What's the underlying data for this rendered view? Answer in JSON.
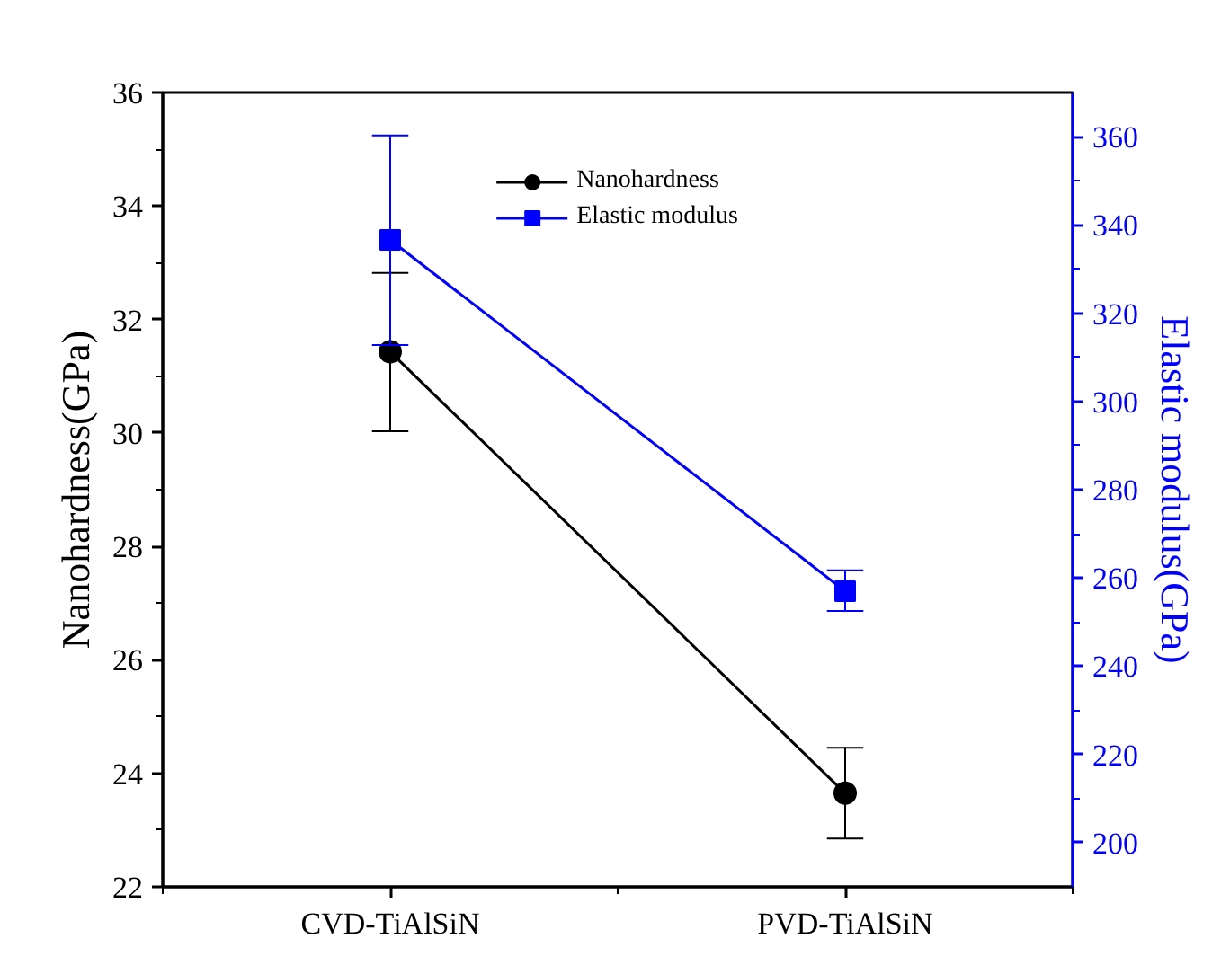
{
  "chart_data": {
    "type": "line",
    "ylabel": "Nanohardness(GPa)",
    "y2label": "Elastic modulus(GPa)",
    "categories": [
      "CVD-TiAlSiN",
      "PVD-TiAlSiN"
    ],
    "series": [
      {
        "name": "Nanohardness",
        "color": "#000000",
        "values": [
          31.43,
          23.65
        ],
        "errors": [
          [
            30.03,
            32.82
          ],
          [
            22.85,
            24.45
          ]
        ],
        "marker": "circle"
      },
      {
        "name": "Elastic modulus",
        "color": "#0000ff",
        "values": [
          336.6,
          257.0
        ],
        "errors": [
          [
            312.8,
            360.3
          ],
          [
            252.5,
            261.7
          ]
        ],
        "marker": "square",
        "axis": "y2"
      }
    ],
    "ylim": [
      22,
      36
    ],
    "yticks": [
      22,
      24,
      26,
      28,
      30,
      32,
      34,
      36
    ],
    "y2lim": [
      190,
      370
    ],
    "y2ticks": [
      200,
      220,
      240,
      260,
      280,
      300,
      320,
      340,
      360
    ],
    "legend": "top",
    "grid": false,
    "line_style": "solid"
  }
}
